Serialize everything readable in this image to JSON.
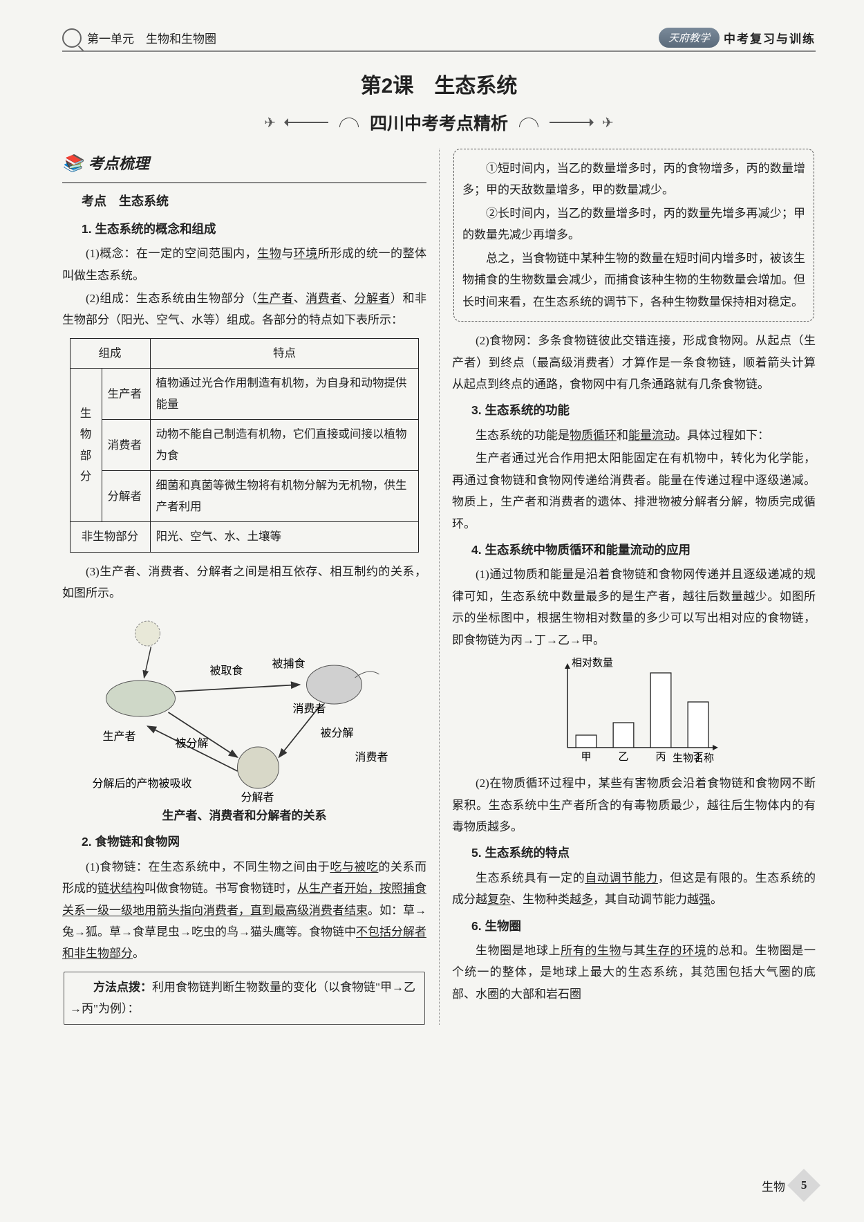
{
  "header": {
    "unit": "第一单元　生物和生物圈",
    "brand_script": "天府教学",
    "brand_tag": "中考复习与训练"
  },
  "lesson_title": "第2课　生态系统",
  "banner": "四川中考考点精析",
  "kaodian_header": "考点梳理",
  "kaodian_sub": "考点　生态系统",
  "h1": "1. 生态系统的概念和组成",
  "p1a": "(1)概念：在一定的空间范围内，",
  "p1b": "生物",
  "p1c": "与",
  "p1d": "环境",
  "p1e": "所形成的统一的整体叫做生态系统。",
  "p2a": "(2)组成：生态系统由生物部分（",
  "p2b": "生产者",
  "p2c": "、",
  "p2d": "消费者",
  "p2e": "、",
  "p2f": "分解者",
  "p2g": "）和非生物部分（阳光、空气、水等）组成。各部分的特点如下表所示：",
  "table": {
    "head": [
      "组成",
      "特点"
    ],
    "rowspan_label": "生物部分",
    "rows": [
      [
        "生产者",
        "植物通过光合作用制造有机物，为自身和动物提供能量"
      ],
      [
        "消费者",
        "动物不能自己制造有机物，它们直接或间接以植物为食"
      ],
      [
        "分解者",
        "细菌和真菌等微生物将有机物分解为无机物，供生产者利用"
      ]
    ],
    "row_nonbio": [
      "非生物部分",
      "阳光、空气、水、土壤等"
    ]
  },
  "p3": "(3)生产者、消费者、分解者之间是相互依存、相互制约的关系，如图所示。",
  "diagram": {
    "labels": {
      "sun": "☀",
      "eaten": "被取食",
      "caught": "被捕食",
      "consumer": "消费者",
      "decomposed": "被分解",
      "decomposed2": "被分解",
      "producer": "生产者",
      "absorbed": "分解后的产物被吸收",
      "decomposer": "分解者"
    },
    "caption": "生产者、消费者和分解者的关系"
  },
  "h2": "2. 食物链和食物网",
  "p4a": "(1)食物链：在生态系统中，不同生物之间由于",
  "p4b": "吃与被吃",
  "p4c": "的关系而形成的",
  "p4d": "链状结构",
  "p4e": "叫做食物链。书写食物链时，",
  "p4f": "从生产者开始，按照捕食关系一级一级地用箭头指向消费者，直到最高级消费者结束",
  "p4g": "。如：草→兔→狐。草→食草昆虫→吃虫的鸟→猫头鹰等。食物链中",
  "p4h": "不包括分解者和非生物部分",
  "p4i": "。",
  "method_label": "方法点拨：",
  "method_text": "利用食物链判断生物数量的变化（以食物链\"甲→乙→丙\"为例）：",
  "callout": {
    "l1": "①短时间内，当乙的数量增多时，丙的食物增多，丙的数量增多；甲的天敌数量增多，甲的数量减少。",
    "l2": "②长时间内，当乙的数量增多时，丙的数量先增多再减少；甲的数量先减少再增多。",
    "l3": "总之，当食物链中某种生物的数量在短时间内增多时，被该生物捕食的生物数量会减少，而捕食该种生物的生物数量会增加。但长时间来看，在生态系统的调节下，各种生物数量保持相对稳定。"
  },
  "p5": "(2)食物网：多条食物链彼此交错连接，形成食物网。从起点（生产者）到终点（最高级消费者）才算作是一条食物链，顺着箭头计算从起点到终点的通路，食物网中有几条通路就有几条食物链。",
  "h3": "3. 生态系统的功能",
  "p6a": "生态系统的功能是",
  "p6b": "物质循环",
  "p6c": "和",
  "p6d": "能量流动",
  "p6e": "。具体过程如下：",
  "p7": "生产者通过光合作用把太阳能固定在有机物中，转化为化学能，再通过食物链和食物网传递给消费者。能量在传递过程中逐级递减。物质上，生产者和消费者的遗体、排泄物被分解者分解，物质完成循环。",
  "h4": "4. 生态系统中物质循环和能量流动的应用",
  "p8": "(1)通过物质和能量是沿着食物链和食物网传递并且逐级递减的规律可知，生态系统中数量最多的是生产者，越往后数量越少。如图所示的坐标图中，根据生物相对数量的多少可以写出相对应的食物链，即食物链为丙→丁→乙→甲。",
  "chart": {
    "type": "bar",
    "ylabel": "相对数量",
    "xlabel": "生物名称",
    "categories": [
      "甲",
      "乙",
      "丙",
      "丁"
    ],
    "values": [
      15,
      30,
      90,
      55
    ],
    "bar_color": "#ffffff",
    "border_color": "#222222",
    "axis_color": "#222222",
    "font_size": 15,
    "ylim": [
      0,
      100
    ],
    "bar_width": 0.55
  },
  "p9": "(2)在物质循环过程中，某些有害物质会沿着食物链和食物网不断累积。生态系统中生产者所含的有毒物质最少，越往后生物体内的有毒物质越多。",
  "h5": "5. 生态系统的特点",
  "p10a": "生态系统具有一定的",
  "p10b": "自动调节能力",
  "p10c": "，但这是有限的。生态系统的成分越",
  "p10d": "复杂",
  "p10e": "、生物种类越",
  "p10f": "多",
  "p10g": "，其自动调节能力越",
  "p10h": "强",
  "p10i": "。",
  "h6": "6. 生物圈",
  "p11a": "生物圈是地球上",
  "p11b": "所有的生物",
  "p11c": "与其",
  "p11d": "生存的环境",
  "p11e": "的总和。生物圈是一个统一的整体，是地球上最大的生态系统，其范围包括大气圈的底部、水圈的大部和岩石圈",
  "footer": {
    "subject": "生物",
    "page": "5"
  }
}
